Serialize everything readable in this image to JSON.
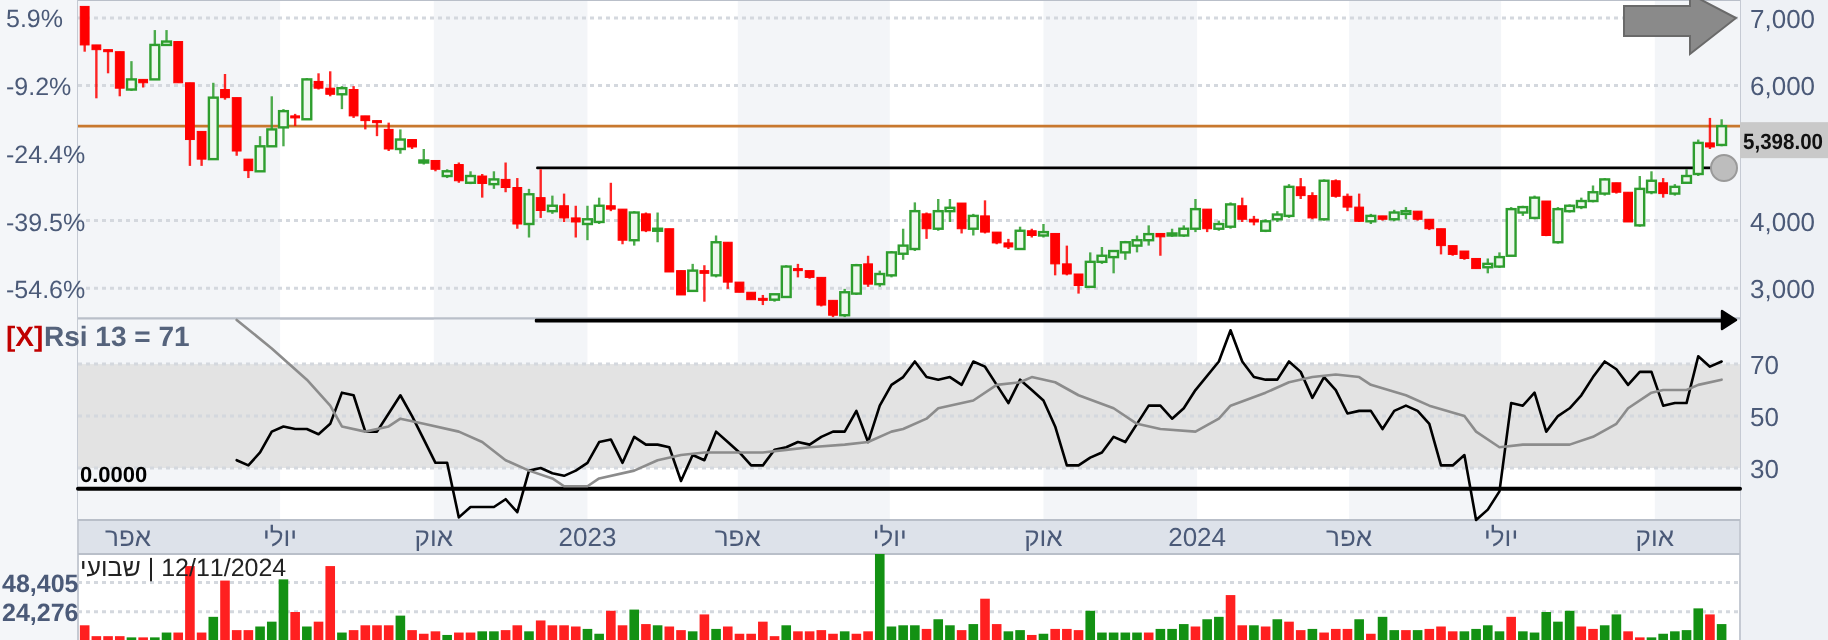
{
  "chart_data": [
    {
      "type": "candlestick",
      "tick_labels": "y",
      "grid": "y",
      "xlim": [
        "2022-03-02",
        "2024-11-21"
      ],
      "ylim": [
        2550,
        7265
      ],
      "yticks": [
        {
          "value": 3000,
          "label": "3,000"
        },
        {
          "value": 4000,
          "label": "4,000"
        },
        {
          "value": 6000,
          "label": "6,000"
        },
        {
          "value": 7000,
          "label": "7,000"
        }
      ],
      "y2lim": [
        -61.4,
        9.8
      ],
      "y2ticks": [
        {
          "value": 5.9,
          "label": "5.9%"
        },
        {
          "value": -9.2,
          "label": "-9.2%"
        },
        {
          "value": -24.4,
          "label": "-24.4%"
        },
        {
          "value": -39.5,
          "label": "-39.5%"
        },
        {
          "value": -54.6,
          "label": "-54.6%"
        }
      ],
      "bands": [
        {
          "axis": "x",
          "from": "2022-03-02",
          "to": "2022-07-01",
          "color": "#f3f5f8"
        },
        {
          "axis": "x",
          "from": "2022-10-01",
          "to": "2023-01-01",
          "color": "#f3f5f8"
        },
        {
          "axis": "x",
          "from": "2023-04-01",
          "to": "2023-07-01",
          "color": "#f3f5f8"
        },
        {
          "axis": "x",
          "from": "2023-10-01",
          "to": "2024-01-01",
          "color": "#f3f5f8"
        },
        {
          "axis": "x",
          "from": "2024-04-01",
          "to": "2024-07-01",
          "color": "#f3f5f8"
        },
        {
          "axis": "x",
          "from": "2024-10-01",
          "to": "2024-11-21",
          "color": "#f3f5f8"
        }
      ],
      "ref_lines": [
        {
          "axis": "y",
          "value": 5398,
          "label": "5,398.00",
          "color": "#c8782e"
        }
      ],
      "series": [
        {
          "type": "line",
          "color": "#000000",
          "x": [
            "2022-12-02",
            "2024-11-10"
          ],
          "values": [
            4780,
            4780
          ]
        }
      ],
      "x": [
        "2022-03-06",
        "2022-03-13",
        "2022-03-20",
        "2022-03-27",
        "2022-04-03",
        "2022-04-10",
        "2022-04-17",
        "2022-04-24",
        "2022-05-01",
        "2022-05-08",
        "2022-05-15",
        "2022-05-22",
        "2022-05-29",
        "2022-06-05",
        "2022-06-12",
        "2022-06-19",
        "2022-06-26",
        "2022-07-03",
        "2022-07-10",
        "2022-07-17",
        "2022-07-24",
        "2022-07-31",
        "2022-08-07",
        "2022-08-14",
        "2022-08-21",
        "2022-08-28",
        "2022-09-04",
        "2022-09-11",
        "2022-09-18",
        "2022-09-25",
        "2022-10-02",
        "2022-10-09",
        "2022-10-16",
        "2022-10-23",
        "2022-10-30",
        "2022-11-06",
        "2022-11-13",
        "2022-11-20",
        "2022-11-27",
        "2022-12-04",
        "2022-12-11",
        "2022-12-18",
        "2022-12-25",
        "2023-01-01",
        "2023-01-08",
        "2023-01-15",
        "2023-01-22",
        "2023-01-29",
        "2023-02-05",
        "2023-02-12",
        "2023-02-19",
        "2023-02-26",
        "2023-03-05",
        "2023-03-12",
        "2023-03-19",
        "2023-03-26",
        "2023-04-02",
        "2023-04-09",
        "2023-04-16",
        "2023-04-23",
        "2023-04-30",
        "2023-05-07",
        "2023-05-14",
        "2023-05-21",
        "2023-05-28",
        "2023-06-04",
        "2023-06-11",
        "2023-06-18",
        "2023-06-25",
        "2023-07-02",
        "2023-07-09",
        "2023-07-16",
        "2023-07-23",
        "2023-07-30",
        "2023-08-06",
        "2023-08-13",
        "2023-08-20",
        "2023-08-27",
        "2023-09-03",
        "2023-09-10",
        "2023-09-17",
        "2023-09-24",
        "2023-10-01",
        "2023-10-08",
        "2023-10-15",
        "2023-10-22",
        "2023-10-29",
        "2023-11-05",
        "2023-11-12",
        "2023-11-19",
        "2023-11-26",
        "2023-12-03",
        "2023-12-10",
        "2023-12-17",
        "2023-12-24",
        "2023-12-31",
        "2024-01-07",
        "2024-01-14",
        "2024-01-21",
        "2024-01-28",
        "2024-02-04",
        "2024-02-11",
        "2024-02-18",
        "2024-02-25",
        "2024-03-03",
        "2024-03-10",
        "2024-03-17",
        "2024-03-24",
        "2024-03-31",
        "2024-04-07",
        "2024-04-14",
        "2024-04-21",
        "2024-04-28",
        "2024-05-05",
        "2024-05-12",
        "2024-05-19",
        "2024-05-26",
        "2024-06-02",
        "2024-06-09",
        "2024-06-16",
        "2024-06-23",
        "2024-06-30",
        "2024-07-07",
        "2024-07-14",
        "2024-07-21",
        "2024-07-28",
        "2024-08-04",
        "2024-08-11",
        "2024-08-18",
        "2024-08-25",
        "2024-09-01",
        "2024-09-08",
        "2024-09-15",
        "2024-09-22",
        "2024-09-29",
        "2024-10-06",
        "2024-10-13",
        "2024-10-20",
        "2024-10-27",
        "2024-11-03",
        "2024-11-10"
      ],
      "ohlc": [
        [
          7170,
          7170,
          6500,
          6600
        ],
        [
          6600,
          6600,
          5810,
          6530
        ],
        [
          6530,
          6530,
          6180,
          6500
        ],
        [
          6500,
          6500,
          5840,
          5960
        ],
        [
          5940,
          6360,
          5920,
          6090
        ],
        [
          6090,
          6090,
          5970,
          6040
        ],
        [
          6090,
          6820,
          6090,
          6600
        ],
        [
          6600,
          6820,
          6600,
          6650
        ],
        [
          6650,
          6650,
          6040,
          6040
        ],
        [
          6040,
          6040,
          4810,
          5200
        ],
        [
          5320,
          5320,
          4810,
          4910
        ],
        [
          4910,
          6040,
          4910,
          5820
        ],
        [
          5940,
          6170,
          5790,
          5820
        ],
        [
          5820,
          5820,
          4960,
          5030
        ],
        [
          4910,
          4910,
          4630,
          4740
        ],
        [
          4730,
          5250,
          4730,
          5100
        ],
        [
          5100,
          5840,
          5100,
          5350
        ],
        [
          5380,
          5650,
          5100,
          5620
        ],
        [
          5550,
          5580,
          5400,
          5520
        ],
        [
          5500,
          6110,
          5500,
          6090
        ],
        [
          6060,
          6180,
          5940,
          5960
        ],
        [
          5960,
          6210,
          5840,
          5870
        ],
        [
          5870,
          5990,
          5650,
          5960
        ],
        [
          5940,
          5990,
          5520,
          5550
        ],
        [
          5550,
          5550,
          5350,
          5480
        ],
        [
          5480,
          5480,
          5250,
          5450
        ],
        [
          5350,
          5450,
          5030,
          5060
        ],
        [
          5060,
          5350,
          4990,
          5200
        ],
        [
          5200,
          5200,
          5060,
          5090
        ],
        [
          4860,
          5060,
          4830,
          4890
        ],
        [
          4890,
          4890,
          4730,
          4760
        ],
        [
          4660,
          4760,
          4630,
          4730
        ],
        [
          4830,
          4860,
          4560,
          4590
        ],
        [
          4560,
          4730,
          4540,
          4660
        ],
        [
          4660,
          4690,
          4340,
          4550
        ],
        [
          4540,
          4730,
          4470,
          4610
        ],
        [
          4610,
          4860,
          4420,
          4490
        ],
        [
          4490,
          4630,
          3880,
          3950
        ],
        [
          3950,
          4470,
          3750,
          4390
        ],
        [
          4340,
          4760,
          4040,
          4150
        ],
        [
          4140,
          4370,
          4100,
          4220
        ],
        [
          4220,
          4400,
          3980,
          4040
        ],
        [
          4040,
          4220,
          3750,
          3980
        ],
        [
          3950,
          4220,
          3710,
          4020
        ],
        [
          3980,
          4340,
          3950,
          4220
        ],
        [
          4220,
          4560,
          4140,
          4170
        ],
        [
          4170,
          4170,
          3650,
          3710
        ],
        [
          3710,
          4140,
          3630,
          4120
        ],
        [
          4100,
          4120,
          3830,
          3850
        ],
        [
          3850,
          4120,
          3680,
          3880
        ],
        [
          3880,
          3880,
          3240,
          3240
        ],
        [
          3260,
          3260,
          2900,
          2900
        ],
        [
          2960,
          3360,
          2960,
          3260
        ],
        [
          3260,
          3340,
          2800,
          3220
        ],
        [
          3190,
          3780,
          3160,
          3680
        ],
        [
          3680,
          3680,
          2990,
          3090
        ],
        [
          3090,
          3090,
          2940,
          2940
        ],
        [
          2940,
          2940,
          2830,
          2830
        ],
        [
          2850,
          2900,
          2750,
          2830
        ],
        [
          2830,
          2910,
          2800,
          2910
        ],
        [
          2870,
          3340,
          2870,
          3320
        ],
        [
          3290,
          3360,
          3160,
          3260
        ],
        [
          3260,
          3260,
          3140,
          3160
        ],
        [
          3160,
          3160,
          2730,
          2750
        ],
        [
          2820,
          2820,
          2570,
          2600
        ],
        [
          2600,
          2990,
          2570,
          2940
        ],
        [
          2920,
          3360,
          2900,
          3340
        ],
        [
          3360,
          3480,
          3020,
          3060
        ],
        [
          3060,
          3260,
          3020,
          3210
        ],
        [
          3190,
          3550,
          3160,
          3530
        ],
        [
          3510,
          3880,
          3420,
          3630
        ],
        [
          3580,
          4270,
          3550,
          4140
        ],
        [
          4100,
          4120,
          3730,
          3880
        ],
        [
          3880,
          4320,
          3850,
          4140
        ],
        [
          4140,
          4320,
          3980,
          4190
        ],
        [
          4260,
          4260,
          3810,
          3880
        ],
        [
          3880,
          4100,
          3780,
          4070
        ],
        [
          4070,
          4300,
          3810,
          3830
        ],
        [
          3830,
          3830,
          3650,
          3670
        ],
        [
          3670,
          3730,
          3580,
          3610
        ],
        [
          3580,
          3910,
          3580,
          3850
        ],
        [
          3850,
          3880,
          3750,
          3780
        ],
        [
          3780,
          3950,
          3750,
          3830
        ],
        [
          3810,
          3810,
          3190,
          3360
        ],
        [
          3360,
          3630,
          3190,
          3210
        ],
        [
          3210,
          3210,
          2920,
          3040
        ],
        [
          3020,
          3530,
          3020,
          3390
        ],
        [
          3390,
          3610,
          3360,
          3480
        ],
        [
          3460,
          3550,
          3220,
          3550
        ],
        [
          3530,
          3700,
          3420,
          3680
        ],
        [
          3630,
          3780,
          3530,
          3710
        ],
        [
          3710,
          3930,
          3630,
          3800
        ],
        [
          3810,
          3810,
          3480,
          3760
        ],
        [
          3780,
          3880,
          3760,
          3810
        ],
        [
          3780,
          3930,
          3760,
          3880
        ],
        [
          3880,
          4320,
          3830,
          4170
        ],
        [
          4170,
          4170,
          3830,
          3880
        ],
        [
          3880,
          4000,
          3850,
          3950
        ],
        [
          3910,
          4270,
          3880,
          4240
        ],
        [
          4220,
          4340,
          3980,
          4020
        ],
        [
          4020,
          4070,
          3930,
          3980
        ],
        [
          3850,
          4020,
          3830,
          3990
        ],
        [
          4020,
          4140,
          3980,
          4090
        ],
        [
          4070,
          4540,
          4040,
          4500
        ],
        [
          4500,
          4630,
          4320,
          4370
        ],
        [
          4370,
          4420,
          4020,
          4040
        ],
        [
          4020,
          4610,
          4000,
          4590
        ],
        [
          4590,
          4610,
          4340,
          4360
        ],
        [
          4360,
          4400,
          4140,
          4200
        ],
        [
          4200,
          4400,
          3980,
          3990
        ],
        [
          3990,
          4100,
          3950,
          4070
        ],
        [
          4070,
          4070,
          4000,
          4020
        ],
        [
          4020,
          4160,
          3990,
          4120
        ],
        [
          4100,
          4200,
          4020,
          4140
        ],
        [
          4140,
          4140,
          4000,
          4020
        ],
        [
          4020,
          4020,
          3860,
          3880
        ],
        [
          3880,
          3880,
          3500,
          3630
        ],
        [
          3630,
          3630,
          3480,
          3500
        ],
        [
          3550,
          3550,
          3420,
          3440
        ],
        [
          3440,
          3440,
          3290,
          3290
        ],
        [
          3310,
          3440,
          3220,
          3360
        ],
        [
          3320,
          3530,
          3300,
          3460
        ],
        [
          3480,
          4200,
          3480,
          4170
        ],
        [
          4120,
          4220,
          4070,
          4200
        ],
        [
          4040,
          4370,
          4020,
          4340
        ],
        [
          4290,
          4290,
          3770,
          3780
        ],
        [
          3680,
          4200,
          3660,
          4170
        ],
        [
          4140,
          4240,
          4120,
          4220
        ],
        [
          4200,
          4340,
          4170,
          4290
        ],
        [
          4290,
          4520,
          4270,
          4420
        ],
        [
          4400,
          4630,
          4370,
          4610
        ],
        [
          4560,
          4560,
          4400,
          4420
        ],
        [
          4420,
          4420,
          3980,
          3980
        ],
        [
          3930,
          4660,
          3910,
          4470
        ],
        [
          4420,
          4730,
          4390,
          4590
        ],
        [
          4560,
          4630,
          4340,
          4400
        ],
        [
          4400,
          4540,
          4370,
          4500
        ],
        [
          4560,
          4760,
          4550,
          4660
        ],
        [
          4690,
          5200,
          4660,
          5150
        ],
        [
          5150,
          5520,
          5060,
          5090
        ],
        [
          5120,
          5500,
          5100,
          5398
        ]
      ],
      "colors": [
        "#ff0000",
        "#ff0000",
        "#ff0000",
        "#ff0000",
        "#2e9e2e",
        "#ff0000",
        "#2e9e2e",
        "#2e9e2e",
        "#ff0000",
        "#ff0000",
        "#ff0000",
        "#2e9e2e",
        "#ff0000",
        "#ff0000",
        "#ff0000",
        "#2e9e2e",
        "#2e9e2e",
        "#2e9e2e",
        "#ff0000",
        "#2e9e2e",
        "#ff0000",
        "#ff0000",
        "#2e9e2e",
        "#ff0000",
        "#ff0000",
        "#ff0000",
        "#ff0000",
        "#2e9e2e",
        "#ff0000",
        "#2e9e2e",
        "#ff0000",
        "#2e9e2e",
        "#ff0000",
        "#2e9e2e",
        "#ff0000",
        "#2e9e2e",
        "#ff0000",
        "#ff0000",
        "#2e9e2e",
        "#ff0000",
        "#2e9e2e",
        "#ff0000",
        "#ff0000",
        "#2e9e2e",
        "#2e9e2e",
        "#ff0000",
        "#ff0000",
        "#2e9e2e",
        "#ff0000",
        "#2e9e2e",
        "#ff0000",
        "#ff0000",
        "#2e9e2e",
        "#ff0000",
        "#2e9e2e",
        "#ff0000",
        "#ff0000",
        "#ff0000",
        "#ff0000",
        "#2e9e2e",
        "#2e9e2e",
        "#ff0000",
        "#ff0000",
        "#ff0000",
        "#ff0000",
        "#2e9e2e",
        "#2e9e2e",
        "#ff0000",
        "#2e9e2e",
        "#2e9e2e",
        "#2e9e2e",
        "#2e9e2e",
        "#ff0000",
        "#2e9e2e",
        "#2e9e2e",
        "#ff0000",
        "#2e9e2e",
        "#ff0000",
        "#ff0000",
        "#ff0000",
        "#2e9e2e",
        "#ff0000",
        "#2e9e2e",
        "#ff0000",
        "#ff0000",
        "#ff0000",
        "#2e9e2e",
        "#2e9e2e",
        "#2e9e2e",
        "#2e9e2e",
        "#2e9e2e",
        "#2e9e2e",
        "#ff0000",
        "#2e9e2e",
        "#2e9e2e",
        "#2e9e2e",
        "#ff0000",
        "#2e9e2e",
        "#2e9e2e",
        "#ff0000",
        "#ff0000",
        "#2e9e2e",
        "#2e9e2e",
        "#2e9e2e",
        "#ff0000",
        "#ff0000",
        "#2e9e2e",
        "#ff0000",
        "#ff0000",
        "#ff0000",
        "#2e9e2e",
        "#ff0000",
        "#2e9e2e",
        "#2e9e2e",
        "#ff0000",
        "#ff0000",
        "#ff0000",
        "#ff0000",
        "#ff0000",
        "#ff0000",
        "#2e9e2e",
        "#2e9e2e",
        "#2e9e2e",
        "#2e9e2e",
        "#2e9e2e",
        "#ff0000",
        "#2e9e2e",
        "#2e9e2e",
        "#2e9e2e",
        "#2e9e2e",
        "#2e9e2e",
        "#ff0000",
        "#ff0000",
        "#2e9e2e",
        "#2e9e2e",
        "#ff0000",
        "#2e9e2e",
        "#2e9e2e",
        "#2e9e2e",
        "#ff0000",
        "#2e9e2e"
      ]
    },
    {
      "type": "line",
      "grid": "y",
      "xlim": [
        "2022-03-02",
        "2024-11-21"
      ],
      "ylim": [
        10,
        87.5
      ],
      "yticks": [
        30,
        50,
        70
      ],
      "xticks": [
        {
          "value": "2022-04-01",
          "label": "אפר"
        },
        {
          "value": "2022-07-01",
          "label": "יולי"
        },
        {
          "value": "2022-10-01",
          "label": "אוק"
        },
        {
          "value": "2023-01-01",
          "label": "2023"
        },
        {
          "value": "2023-04-01",
          "label": "אפר"
        },
        {
          "value": "2023-07-01",
          "label": "יולי"
        },
        {
          "value": "2023-10-01",
          "label": "אוק"
        },
        {
          "value": "2024-01-01",
          "label": "2024"
        },
        {
          "value": "2024-04-01",
          "label": "אפר"
        },
        {
          "value": "2024-07-01",
          "label": "יולי"
        },
        {
          "value": "2024-10-01",
          "label": "אוק"
        }
      ],
      "annotations": [
        "[X]",
        "Rsi 13 = 71",
        "0.0000"
      ],
      "bands": [
        {
          "axis": "x",
          "from": "2022-03-02",
          "to": "2022-07-01",
          "color": "#f3f5f8"
        },
        {
          "axis": "x",
          "from": "2022-10-01",
          "to": "2023-01-01",
          "color": "#f3f5f8"
        },
        {
          "axis": "x",
          "from": "2023-04-01",
          "to": "2023-07-01",
          "color": "#f3f5f8"
        },
        {
          "axis": "x",
          "from": "2023-10-01",
          "to": "2024-01-01",
          "color": "#f3f5f8"
        },
        {
          "axis": "x",
          "from": "2024-04-01",
          "to": "2024-07-01",
          "color": "#f3f5f8"
        },
        {
          "axis": "x",
          "from": "2024-10-01",
          "to": "2024-11-21",
          "color": "#f3f5f8"
        },
        {
          "axis": "y",
          "from": 30,
          "to": 70,
          "color": "#e3e3e3"
        }
      ],
      "series": [
        {
          "color": "#000000",
          "x": [
            "2022-03-02",
            "2024-11-21"
          ],
          "values": [
            22,
            22
          ]
        },
        {
          "color": "#000000",
          "x": [
            "2022-06-05",
            "2022-06-12",
            "2022-06-19",
            "2022-06-26",
            "2022-07-03",
            "2022-07-10",
            "2022-07-17",
            "2022-07-24",
            "2022-07-31",
            "2022-08-07",
            "2022-08-14",
            "2022-08-21",
            "2022-08-28",
            "2022-09-04",
            "2022-09-11",
            "2022-09-18",
            "2022-09-25",
            "2022-10-02",
            "2022-10-09",
            "2022-10-16",
            "2022-10-23",
            "2022-10-30",
            "2022-11-06",
            "2022-11-13",
            "2022-11-20",
            "2022-11-27",
            "2022-12-04",
            "2022-12-11",
            "2022-12-18",
            "2022-12-25",
            "2023-01-01",
            "2023-01-08",
            "2023-01-15",
            "2023-01-22",
            "2023-01-29",
            "2023-02-05",
            "2023-02-12",
            "2023-02-19",
            "2023-02-26",
            "2023-03-05",
            "2023-03-12",
            "2023-03-19",
            "2023-03-26",
            "2023-04-02",
            "2023-04-09",
            "2023-04-16",
            "2023-04-23",
            "2023-04-30",
            "2023-05-07",
            "2023-05-14",
            "2023-05-21",
            "2023-05-28",
            "2023-06-04",
            "2023-06-11",
            "2023-06-18",
            "2023-06-25",
            "2023-07-02",
            "2023-07-09",
            "2023-07-16",
            "2023-07-23",
            "2023-07-30",
            "2023-08-06",
            "2023-08-13",
            "2023-08-20",
            "2023-08-27",
            "2023-09-03",
            "2023-09-10",
            "2023-09-17",
            "2023-09-24",
            "2023-10-01",
            "2023-10-08",
            "2023-10-15",
            "2023-10-22",
            "2023-10-29",
            "2023-11-05",
            "2023-11-12",
            "2023-11-19",
            "2023-11-26",
            "2023-12-03",
            "2023-12-10",
            "2023-12-17",
            "2023-12-24",
            "2023-12-31",
            "2024-01-14",
            "2024-01-21",
            "2024-01-28",
            "2024-02-04",
            "2024-02-11",
            "2024-02-18",
            "2024-02-25",
            "2024-03-03",
            "2024-03-10",
            "2024-03-17",
            "2024-03-24",
            "2024-03-31",
            "2024-04-07",
            "2024-04-14",
            "2024-04-21",
            "2024-04-28",
            "2024-05-05",
            "2024-05-12",
            "2024-05-19",
            "2024-05-26",
            "2024-06-02",
            "2024-06-09",
            "2024-06-16",
            "2024-06-23",
            "2024-06-30",
            "2024-07-07",
            "2024-07-14",
            "2024-07-21",
            "2024-07-28",
            "2024-08-04",
            "2024-08-11",
            "2024-08-18",
            "2024-08-25",
            "2024-09-01",
            "2024-09-08",
            "2024-09-15",
            "2024-09-22",
            "2024-09-29",
            "2024-10-06",
            "2024-10-13",
            "2024-10-20",
            "2024-10-27",
            "2024-11-03",
            "2024-11-10"
          ],
          "values": [
            33,
            31,
            36,
            44,
            46,
            45,
            45,
            43,
            47,
            59,
            58,
            44,
            44,
            51,
            58,
            50,
            41,
            32,
            32,
            11,
            15,
            15,
            15,
            18,
            13,
            29,
            30,
            28,
            27,
            29,
            32,
            40,
            41,
            32,
            42,
            39,
            39,
            38,
            25,
            35,
            33,
            44,
            40,
            36,
            31,
            31,
            37,
            38,
            40,
            39,
            42,
            44,
            44,
            52,
            40,
            54,
            62,
            65,
            71,
            65,
            64,
            65,
            62,
            71,
            69,
            62,
            55,
            64,
            60,
            56,
            46,
            31,
            31,
            34,
            36,
            42,
            40,
            47,
            54,
            54,
            49,
            53,
            60,
            71,
            83,
            71,
            65,
            64,
            64,
            71,
            67,
            57,
            65,
            60,
            51,
            52,
            52,
            45,
            52,
            54,
            52,
            47,
            31,
            31,
            35,
            10,
            14,
            21,
            55,
            54,
            59,
            44,
            50,
            53,
            58,
            65,
            71,
            68,
            62,
            67,
            67,
            54,
            55,
            55,
            73,
            69,
            71
          ]
        },
        {
          "color": "#8c8c8c",
          "x": [
            "2022-06-05",
            "2022-06-26",
            "2022-07-17",
            "2022-07-31",
            "2022-08-07",
            "2022-08-21",
            "2022-09-04",
            "2022-09-11",
            "2022-09-25",
            "2022-10-16",
            "2022-10-30",
            "2022-11-13",
            "2022-11-27",
            "2022-12-11",
            "2022-12-18",
            "2023-01-01",
            "2023-01-08",
            "2023-01-29",
            "2023-02-12",
            "2023-02-26",
            "2023-03-12",
            "2023-04-02",
            "2023-04-16",
            "2023-04-30",
            "2023-05-14",
            "2023-06-04",
            "2023-06-18",
            "2023-07-02",
            "2023-07-09",
            "2023-07-23",
            "2023-07-30",
            "2023-08-20",
            "2023-09-03",
            "2023-09-17",
            "2023-09-24",
            "2023-10-08",
            "2023-10-22",
            "2023-11-12",
            "2023-11-26",
            "2023-12-10",
            "2023-12-31",
            "2024-01-14",
            "2024-01-21",
            "2024-02-11",
            "2024-02-25",
            "2024-03-10",
            "2024-03-24",
            "2024-04-07",
            "2024-04-14",
            "2024-05-05",
            "2024-05-19",
            "2024-06-09",
            "2024-06-16",
            "2024-06-30",
            "2024-07-14",
            "2024-07-28",
            "2024-08-11",
            "2024-08-25",
            "2024-09-08",
            "2024-09-15",
            "2024-09-29",
            "2024-10-06",
            "2024-10-20",
            "2024-10-27",
            "2024-11-10"
          ],
          "values": [
            87,
            76,
            64,
            54,
            46,
            44,
            46,
            49,
            47,
            44,
            40,
            33,
            29,
            26,
            23,
            23,
            26,
            29,
            33,
            35,
            36,
            36,
            36,
            37,
            38,
            39,
            40,
            44,
            45,
            49,
            53,
            56,
            62,
            63,
            65,
            63,
            58,
            53,
            47,
            45,
            44,
            49,
            54,
            59,
            63,
            65,
            66,
            65,
            62,
            58,
            54,
            50,
            44,
            38,
            39,
            39,
            39,
            42,
            47,
            53,
            59,
            60,
            60,
            62,
            64
          ]
        }
      ]
    },
    {
      "type": "bar",
      "tick_labels": "y",
      "grid": "y",
      "xlim": [
        "2022-03-02",
        "2024-11-21"
      ],
      "ylim": [
        0,
        72000
      ],
      "yticks": [
        {
          "value": 24276,
          "label": "24,276"
        },
        {
          "value": 48405,
          "label": "48,405"
        }
      ],
      "annotations": [
        "12/11/2024 | שבועי"
      ],
      "x": [
        "2022-03-06",
        "2022-03-13",
        "2022-03-20",
        "2022-03-27",
        "2022-04-03",
        "2022-04-10",
        "2022-04-17",
        "2022-04-24",
        "2022-05-01",
        "2022-05-08",
        "2022-05-15",
        "2022-05-22",
        "2022-05-29",
        "2022-06-05",
        "2022-06-12",
        "2022-06-19",
        "2022-06-26",
        "2022-07-03",
        "2022-07-10",
        "2022-07-17",
        "2022-07-24",
        "2022-07-31",
        "2022-08-07",
        "2022-08-14",
        "2022-08-21",
        "2022-08-28",
        "2022-09-04",
        "2022-09-11",
        "2022-09-18",
        "2022-09-25",
        "2022-10-02",
        "2022-10-09",
        "2022-10-16",
        "2022-10-23",
        "2022-10-30",
        "2022-11-06",
        "2022-11-13",
        "2022-11-20",
        "2022-11-27",
        "2022-12-04",
        "2022-12-11",
        "2022-12-18",
        "2022-12-25",
        "2023-01-01",
        "2023-01-08",
        "2023-01-15",
        "2023-01-22",
        "2023-01-29",
        "2023-02-05",
        "2023-02-12",
        "2023-02-19",
        "2023-02-26",
        "2023-03-05",
        "2023-03-12",
        "2023-03-19",
        "2023-03-26",
        "2023-04-02",
        "2023-04-09",
        "2023-04-16",
        "2023-04-23",
        "2023-04-30",
        "2023-05-07",
        "2023-05-14",
        "2023-05-21",
        "2023-05-28",
        "2023-06-04",
        "2023-06-11",
        "2023-06-18",
        "2023-06-25",
        "2023-07-02",
        "2023-07-09",
        "2023-07-16",
        "2023-07-23",
        "2023-07-30",
        "2023-08-06",
        "2023-08-13",
        "2023-08-20",
        "2023-08-27",
        "2023-09-03",
        "2023-09-10",
        "2023-09-17",
        "2023-09-24",
        "2023-10-01",
        "2023-10-08",
        "2023-10-15",
        "2023-10-22",
        "2023-10-29",
        "2023-11-05",
        "2023-11-12",
        "2023-11-19",
        "2023-11-26",
        "2023-12-03",
        "2023-12-10",
        "2023-12-17",
        "2023-12-24",
        "2023-12-31",
        "2024-01-07",
        "2024-01-14",
        "2024-01-21",
        "2024-01-28",
        "2024-02-04",
        "2024-02-11",
        "2024-02-18",
        "2024-02-25",
        "2024-03-03",
        "2024-03-10",
        "2024-03-17",
        "2024-03-24",
        "2024-03-31",
        "2024-04-07",
        "2024-04-14",
        "2024-04-21",
        "2024-04-28",
        "2024-05-05",
        "2024-05-12",
        "2024-05-19",
        "2024-05-26",
        "2024-06-02",
        "2024-06-09",
        "2024-06-16",
        "2024-06-23",
        "2024-06-30",
        "2024-07-07",
        "2024-07-14",
        "2024-07-21",
        "2024-07-28",
        "2024-08-04",
        "2024-08-11",
        "2024-08-18",
        "2024-08-25",
        "2024-09-01",
        "2024-09-08",
        "2024-09-15",
        "2024-09-22",
        "2024-09-29",
        "2024-10-06",
        "2024-10-13",
        "2024-10-20",
        "2024-10-27",
        "2024-11-03",
        "2024-11-10"
      ],
      "values": [
        13000,
        4000,
        4000,
        4000,
        3000,
        3000,
        3000,
        7000,
        7000,
        62000,
        7000,
        20000,
        50000,
        9000,
        9000,
        12000,
        16000,
        51000,
        24000,
        12000,
        16000,
        62000,
        7000,
        9000,
        13000,
        13000,
        13000,
        21000,
        9000,
        6000,
        8000,
        5000,
        7000,
        7000,
        8000,
        8000,
        9000,
        13000,
        8000,
        17000,
        13000,
        13000,
        12000,
        10000,
        6000,
        25000,
        13000,
        26000,
        14000,
        13000,
        12000,
        9000,
        8000,
        22000,
        10000,
        12000,
        6000,
        6000,
        16000,
        4000,
        13000,
        8000,
        8000,
        9000,
        6000,
        8000,
        6000,
        8000,
        72000,
        12000,
        13000,
        13000,
        10000,
        18000,
        13000,
        9000,
        14000,
        35000,
        14000,
        8000,
        9000,
        5000,
        6000,
        10000,
        10000,
        9000,
        25000,
        7000,
        7000,
        7000,
        7000,
        7000,
        10000,
        10000,
        14000,
        12000,
        18000,
        20000,
        38000,
        13000,
        13000,
        12000,
        18000,
        16000,
        9000,
        10000,
        7000,
        10000,
        10000,
        18000,
        6000,
        20000,
        9000,
        9000,
        9000,
        10000,
        12000,
        8000,
        8000,
        10000,
        13000,
        8000,
        20000,
        8000,
        7000,
        24000,
        16000,
        25000,
        12000,
        10000,
        13000,
        22000,
        8000,
        3000,
        3000,
        6000,
        8000,
        9000,
        27000,
        22000,
        14000
      ],
      "colors": [
        "#ff2020",
        "#ff2020",
        "#ff2020",
        "#ff2020",
        "#139113",
        "#ff2020",
        "#139113",
        "#139113",
        "#ff2020",
        "#ff2020",
        "#ff2020",
        "#139113",
        "#ff2020",
        "#ff2020",
        "#ff2020",
        "#139113",
        "#139113",
        "#139113",
        "#ff2020",
        "#139113",
        "#ff2020",
        "#ff2020",
        "#139113",
        "#ff2020",
        "#ff2020",
        "#ff2020",
        "#ff2020",
        "#139113",
        "#ff2020",
        "#ff2020",
        "#ff2020",
        "#139113",
        "#ff2020",
        "#ff2020",
        "#139113",
        "#139113",
        "#ff2020",
        "#ff2020",
        "#139113",
        "#ff2020",
        "#ff2020",
        "#ff2020",
        "#ff2020",
        "#139113",
        "#139113",
        "#ff2020",
        "#ff2020",
        "#139113",
        "#ff2020",
        "#139113",
        "#ff2020",
        "#ff2020",
        "#139113",
        "#ff2020",
        "#139113",
        "#ff2020",
        "#ff2020",
        "#ff2020",
        "#ff2020",
        "#ff2020",
        "#139113",
        "#ff2020",
        "#ff2020",
        "#ff2020",
        "#ff2020",
        "#139113",
        "#ff2020",
        "#ff2020",
        "#139113",
        "#139113",
        "#139113",
        "#139113",
        "#ff2020",
        "#139113",
        "#139113",
        "#ff2020",
        "#139113",
        "#ff2020",
        "#ff2020",
        "#139113",
        "#139113",
        "#ff2020",
        "#139113",
        "#ff2020",
        "#ff2020",
        "#ff2020",
        "#139113",
        "#139113",
        "#139113",
        "#139113",
        "#139113",
        "#ff2020",
        "#139113",
        "#139113",
        "#139113",
        "#ff2020",
        "#139113",
        "#139113",
        "#ff2020",
        "#ff2020",
        "#139113",
        "#ff2020",
        "#139113",
        "#ff2020",
        "#ff2020",
        "#139113",
        "#ff2020",
        "#ff2020",
        "#ff2020",
        "#139113",
        "#ff2020",
        "#139113",
        "#139113",
        "#ff2020",
        "#139113",
        "#ff2020",
        "#ff2020",
        "#ff2020",
        "#139113",
        "#139113",
        "#139113",
        "#139113",
        "#ff2020",
        "#139113",
        "#139113",
        "#139113",
        "#139113",
        "#139113",
        "#ff2020",
        "#ff2020",
        "#139113",
        "#139113",
        "#ff2020",
        "#ff2020",
        "#139113",
        "#139113",
        "#139113",
        "#139113",
        "#139113",
        "#ff2020",
        "#139113"
      ]
    }
  ]
}
